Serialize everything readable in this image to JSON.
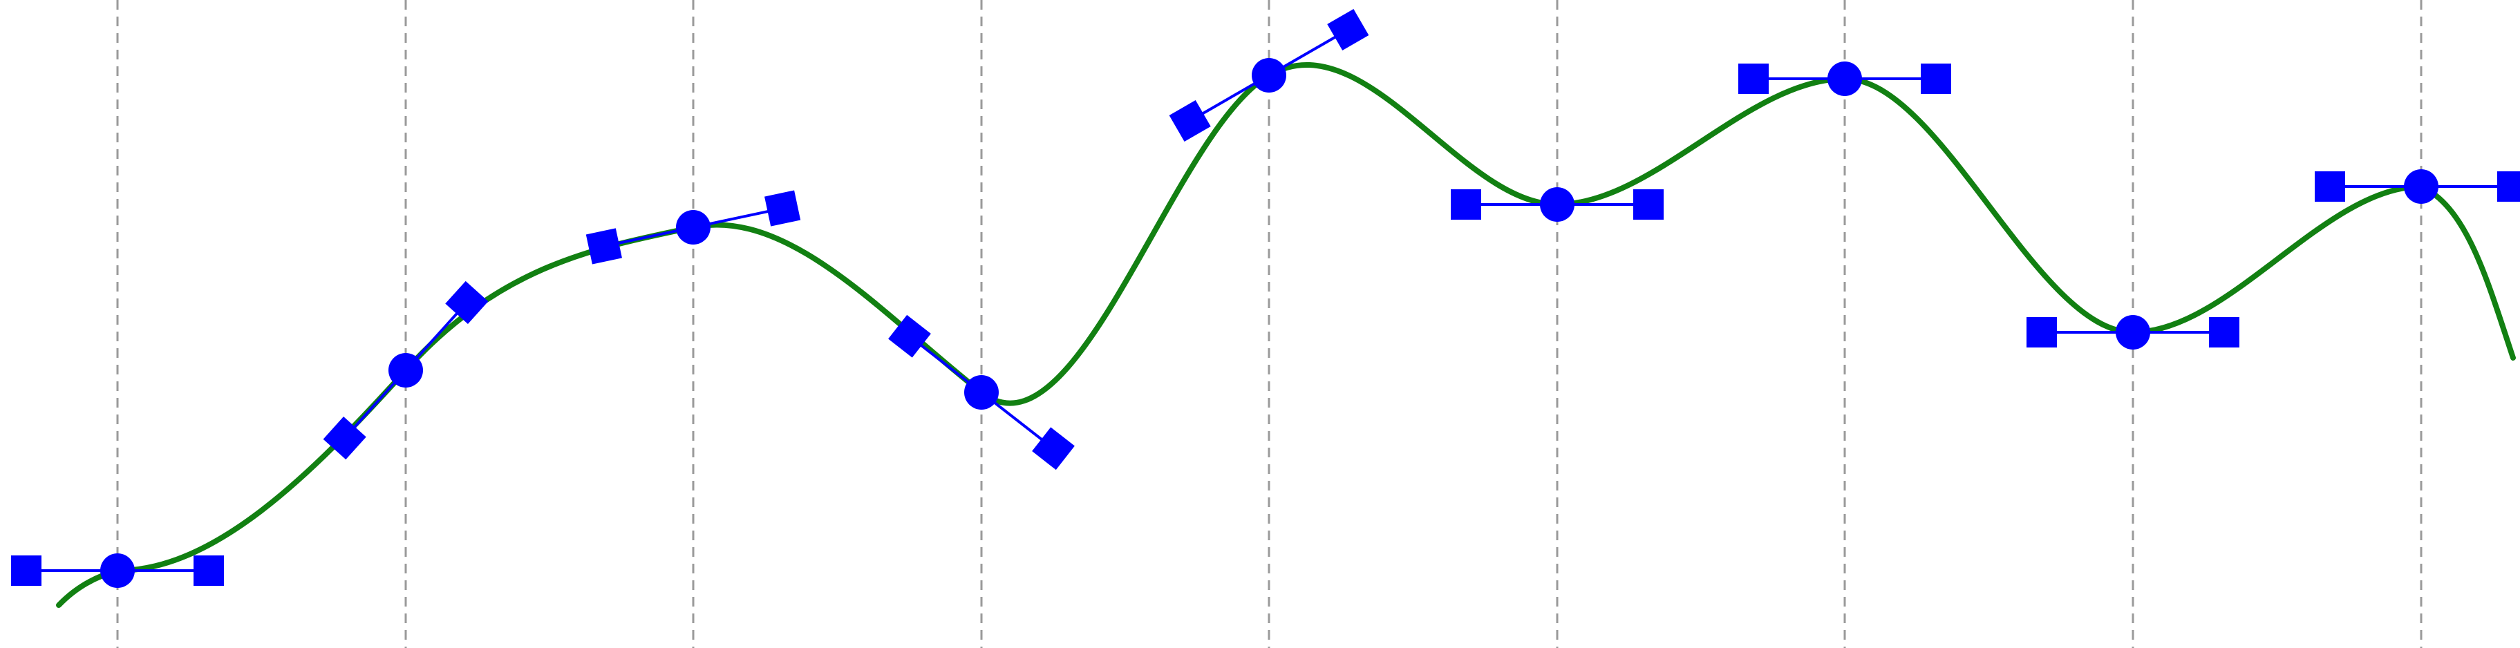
{
  "colors": {
    "background": "#ffffff",
    "curve": "#128012",
    "handle": "#0000ff",
    "gridline": "#9a9a9a"
  },
  "spline": {
    "knots": [
      {
        "id": "k1",
        "slope_deg": 0
      },
      {
        "id": "k2",
        "slope_deg": 48
      },
      {
        "id": "k3",
        "slope_deg": 12
      },
      {
        "id": "k4",
        "slope_deg": -38
      },
      {
        "id": "k5",
        "slope_deg": 30
      },
      {
        "id": "k6",
        "slope_deg": 0
      },
      {
        "id": "k7",
        "slope_deg": 0
      },
      {
        "id": "k8",
        "slope_deg": 0
      },
      {
        "id": "k9",
        "slope_deg": 0
      }
    ]
  }
}
